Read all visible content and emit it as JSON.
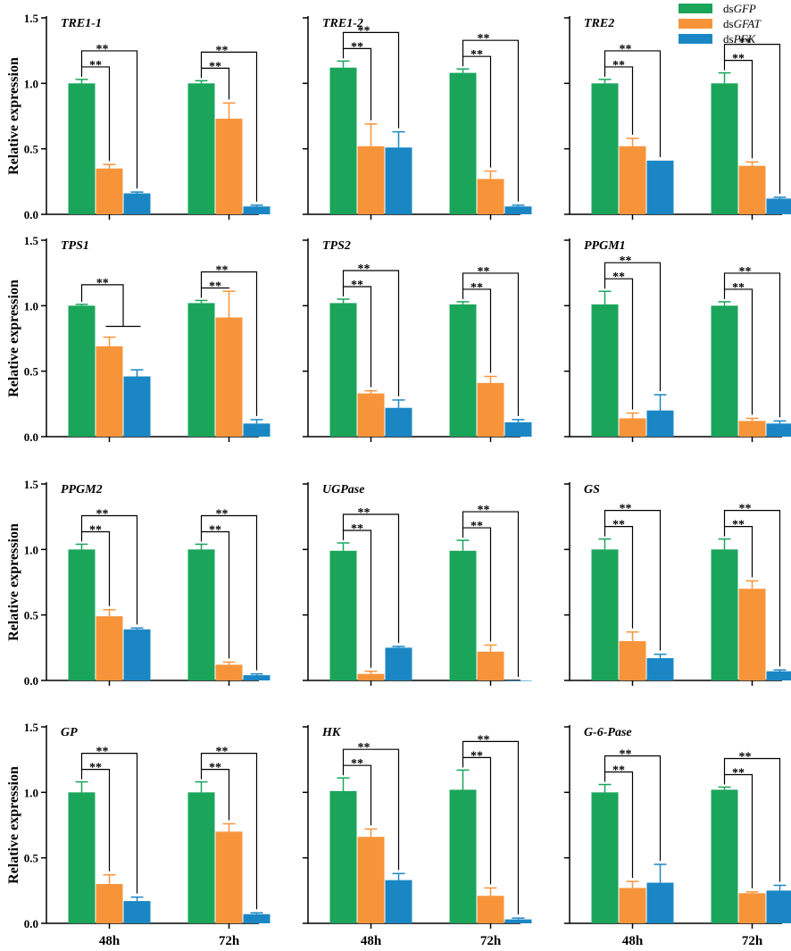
{
  "chart_data": {
    "type": "bar",
    "ylabel": "Relative expression",
    "categories": [
      "48h",
      "72h"
    ],
    "yticks": [
      "0.0",
      "0.5",
      "1.0",
      "1.5"
    ],
    "ylim": [
      0,
      1.5
    ],
    "legend": {
      "placement": "top-right",
      "entries": [
        {
          "prefix": "ds",
          "name": "GFP",
          "color": "#1aa55b"
        },
        {
          "prefix": "ds",
          "name": "GFAT",
          "color": "#f7943a"
        },
        {
          "prefix": "ds",
          "name": "PFK",
          "color": "#1a87c4"
        }
      ]
    },
    "significance_label": "**",
    "panels": [
      {
        "title": "TRE1-1",
        "series_values": [
          [
            1.0,
            1.0
          ],
          [
            0.35,
            0.73
          ],
          [
            0.16,
            0.06
          ]
        ],
        "errors": [
          [
            0.03,
            0.02
          ],
          [
            0.03,
            0.12
          ],
          [
            0.01,
            0.01
          ]
        ],
        "sig": [
          true,
          true
        ]
      },
      {
        "title": "TRE1-2",
        "series_values": [
          [
            1.12,
            1.08
          ],
          [
            0.52,
            0.27
          ],
          [
            0.51,
            0.06
          ]
        ],
        "errors": [
          [
            0.05,
            0.03
          ],
          [
            0.17,
            0.06
          ],
          [
            0.12,
            0.01
          ]
        ],
        "sig": [
          true,
          true
        ]
      },
      {
        "title": "TRE2",
        "series_values": [
          [
            1.0,
            1.0
          ],
          [
            0.52,
            0.37
          ],
          [
            0.41,
            0.12
          ]
        ],
        "errors": [
          [
            0.03,
            0.08
          ],
          [
            0.06,
            0.03
          ],
          [
            0.0,
            0.01
          ]
        ],
        "sig": [
          true,
          true
        ]
      },
      {
        "title": "TPS1",
        "series_values": [
          [
            1.0,
            1.02
          ],
          [
            0.69,
            0.91
          ],
          [
            0.46,
            0.1
          ]
        ],
        "errors": [
          [
            0.01,
            0.02
          ],
          [
            0.07,
            0.2
          ],
          [
            0.05,
            0.03
          ]
        ],
        "sig": [
          true,
          true
        ],
        "bracket_48h": "group"
      },
      {
        "title": "TPS2",
        "series_values": [
          [
            1.02,
            1.01
          ],
          [
            0.33,
            0.41
          ],
          [
            0.22,
            0.11
          ]
        ],
        "errors": [
          [
            0.03,
            0.02
          ],
          [
            0.02,
            0.05
          ],
          [
            0.06,
            0.02
          ]
        ],
        "sig": [
          true,
          true
        ]
      },
      {
        "title": "PPGM1",
        "series_values": [
          [
            1.01,
            1.0
          ],
          [
            0.14,
            0.12
          ],
          [
            0.2,
            0.1
          ]
        ],
        "errors": [
          [
            0.1,
            0.03
          ],
          [
            0.04,
            0.02
          ],
          [
            0.12,
            0.02
          ]
        ],
        "sig": [
          true,
          true
        ]
      },
      {
        "title": "PPGM2",
        "series_values": [
          [
            1.0,
            1.0
          ],
          [
            0.49,
            0.12
          ],
          [
            0.39,
            0.04
          ]
        ],
        "errors": [
          [
            0.04,
            0.04
          ],
          [
            0.05,
            0.02
          ],
          [
            0.01,
            0.01
          ]
        ],
        "sig": [
          true,
          true
        ]
      },
      {
        "title": "UGPase",
        "series_values": [
          [
            0.99,
            0.99
          ],
          [
            0.05,
            0.22
          ],
          [
            0.25,
            0.0
          ]
        ],
        "errors": [
          [
            0.06,
            0.08
          ],
          [
            0.02,
            0.05
          ],
          [
            0.01,
            0.0
          ]
        ],
        "sig": [
          true,
          true
        ]
      },
      {
        "title": "GS",
        "series_values": [
          [
            1.0,
            1.0
          ],
          [
            0.3,
            0.7
          ],
          [
            0.17,
            0.07
          ]
        ],
        "errors": [
          [
            0.08,
            0.08
          ],
          [
            0.07,
            0.06
          ],
          [
            0.03,
            0.01
          ]
        ],
        "sig": [
          true,
          true
        ]
      },
      {
        "title": "GP",
        "series_values": [
          [
            1.0,
            1.0
          ],
          [
            0.3,
            0.7
          ],
          [
            0.17,
            0.07
          ]
        ],
        "errors": [
          [
            0.08,
            0.08
          ],
          [
            0.07,
            0.06
          ],
          [
            0.03,
            0.01
          ]
        ],
        "sig": [
          true,
          true
        ]
      },
      {
        "title": "HK",
        "series_values": [
          [
            1.01,
            1.02
          ],
          [
            0.66,
            0.21
          ],
          [
            0.33,
            0.03
          ]
        ],
        "errors": [
          [
            0.1,
            0.15
          ],
          [
            0.06,
            0.06
          ],
          [
            0.05,
            0.01
          ]
        ],
        "sig": [
          true,
          true
        ]
      },
      {
        "title": "G-6-Pase",
        "series_values": [
          [
            1.0,
            1.02
          ],
          [
            0.27,
            0.23
          ],
          [
            0.31,
            0.25
          ]
        ],
        "errors": [
          [
            0.06,
            0.02
          ],
          [
            0.05,
            0.01
          ],
          [
            0.14,
            0.04
          ]
        ],
        "sig": [
          true,
          true
        ]
      }
    ]
  }
}
